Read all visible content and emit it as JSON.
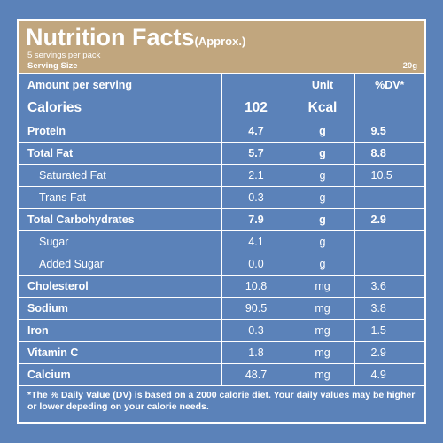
{
  "header": {
    "title": "Nutrition Facts",
    "title_suffix": "(Approx.)",
    "servings": "5 servings per pack",
    "serving_size_label": "Serving Size",
    "serving_size_value": "20g"
  },
  "table": {
    "columns": [
      "Amount per serving",
      "",
      "Unit",
      "%DV*"
    ],
    "rows": [
      {
        "name": "Calories",
        "amount": "102",
        "unit": "Kcal",
        "dv": ""
      },
      {
        "name": "Protein",
        "amount": "4.7",
        "unit": "g",
        "dv": "9.5"
      },
      {
        "name": "Total Fat",
        "amount": "5.7",
        "unit": "g",
        "dv": "8.8"
      },
      {
        "name": "Saturated Fat",
        "amount": "2.1",
        "unit": "g",
        "dv": "10.5"
      },
      {
        "name": "Trans Fat",
        "amount": "0.3",
        "unit": "g",
        "dv": ""
      },
      {
        "name": "Total Carbohydrates",
        "amount": "7.9",
        "unit": "g",
        "dv": "2.9"
      },
      {
        "name": "Sugar",
        "amount": "4.1",
        "unit": "g",
        "dv": ""
      },
      {
        "name": "Added Sugar",
        "amount": "0.0",
        "unit": "g",
        "dv": ""
      },
      {
        "name": "Cholesterol",
        "amount": "10.8",
        "unit": "mg",
        "dv": "3.6"
      },
      {
        "name": "Sodium",
        "amount": "90.5",
        "unit": "mg",
        "dv": "3.8"
      },
      {
        "name": "Iron",
        "amount": "0.3",
        "unit": "mg",
        "dv": "1.5"
      },
      {
        "name": "Vitamin C",
        "amount": "1.8",
        "unit": "mg",
        "dv": "2.9"
      },
      {
        "name": "Calcium",
        "amount": "48.7",
        "unit": "mg",
        "dv": "4.9"
      }
    ]
  },
  "footnote": "*The % Daily Value (DV) is based on a 2000 calorie diet. Your daily values may be higher or lower depeding on your calorie needs.",
  "colors": {
    "background": "#5b82b9",
    "header_band": "#c1a67e",
    "text": "#ffffff"
  }
}
